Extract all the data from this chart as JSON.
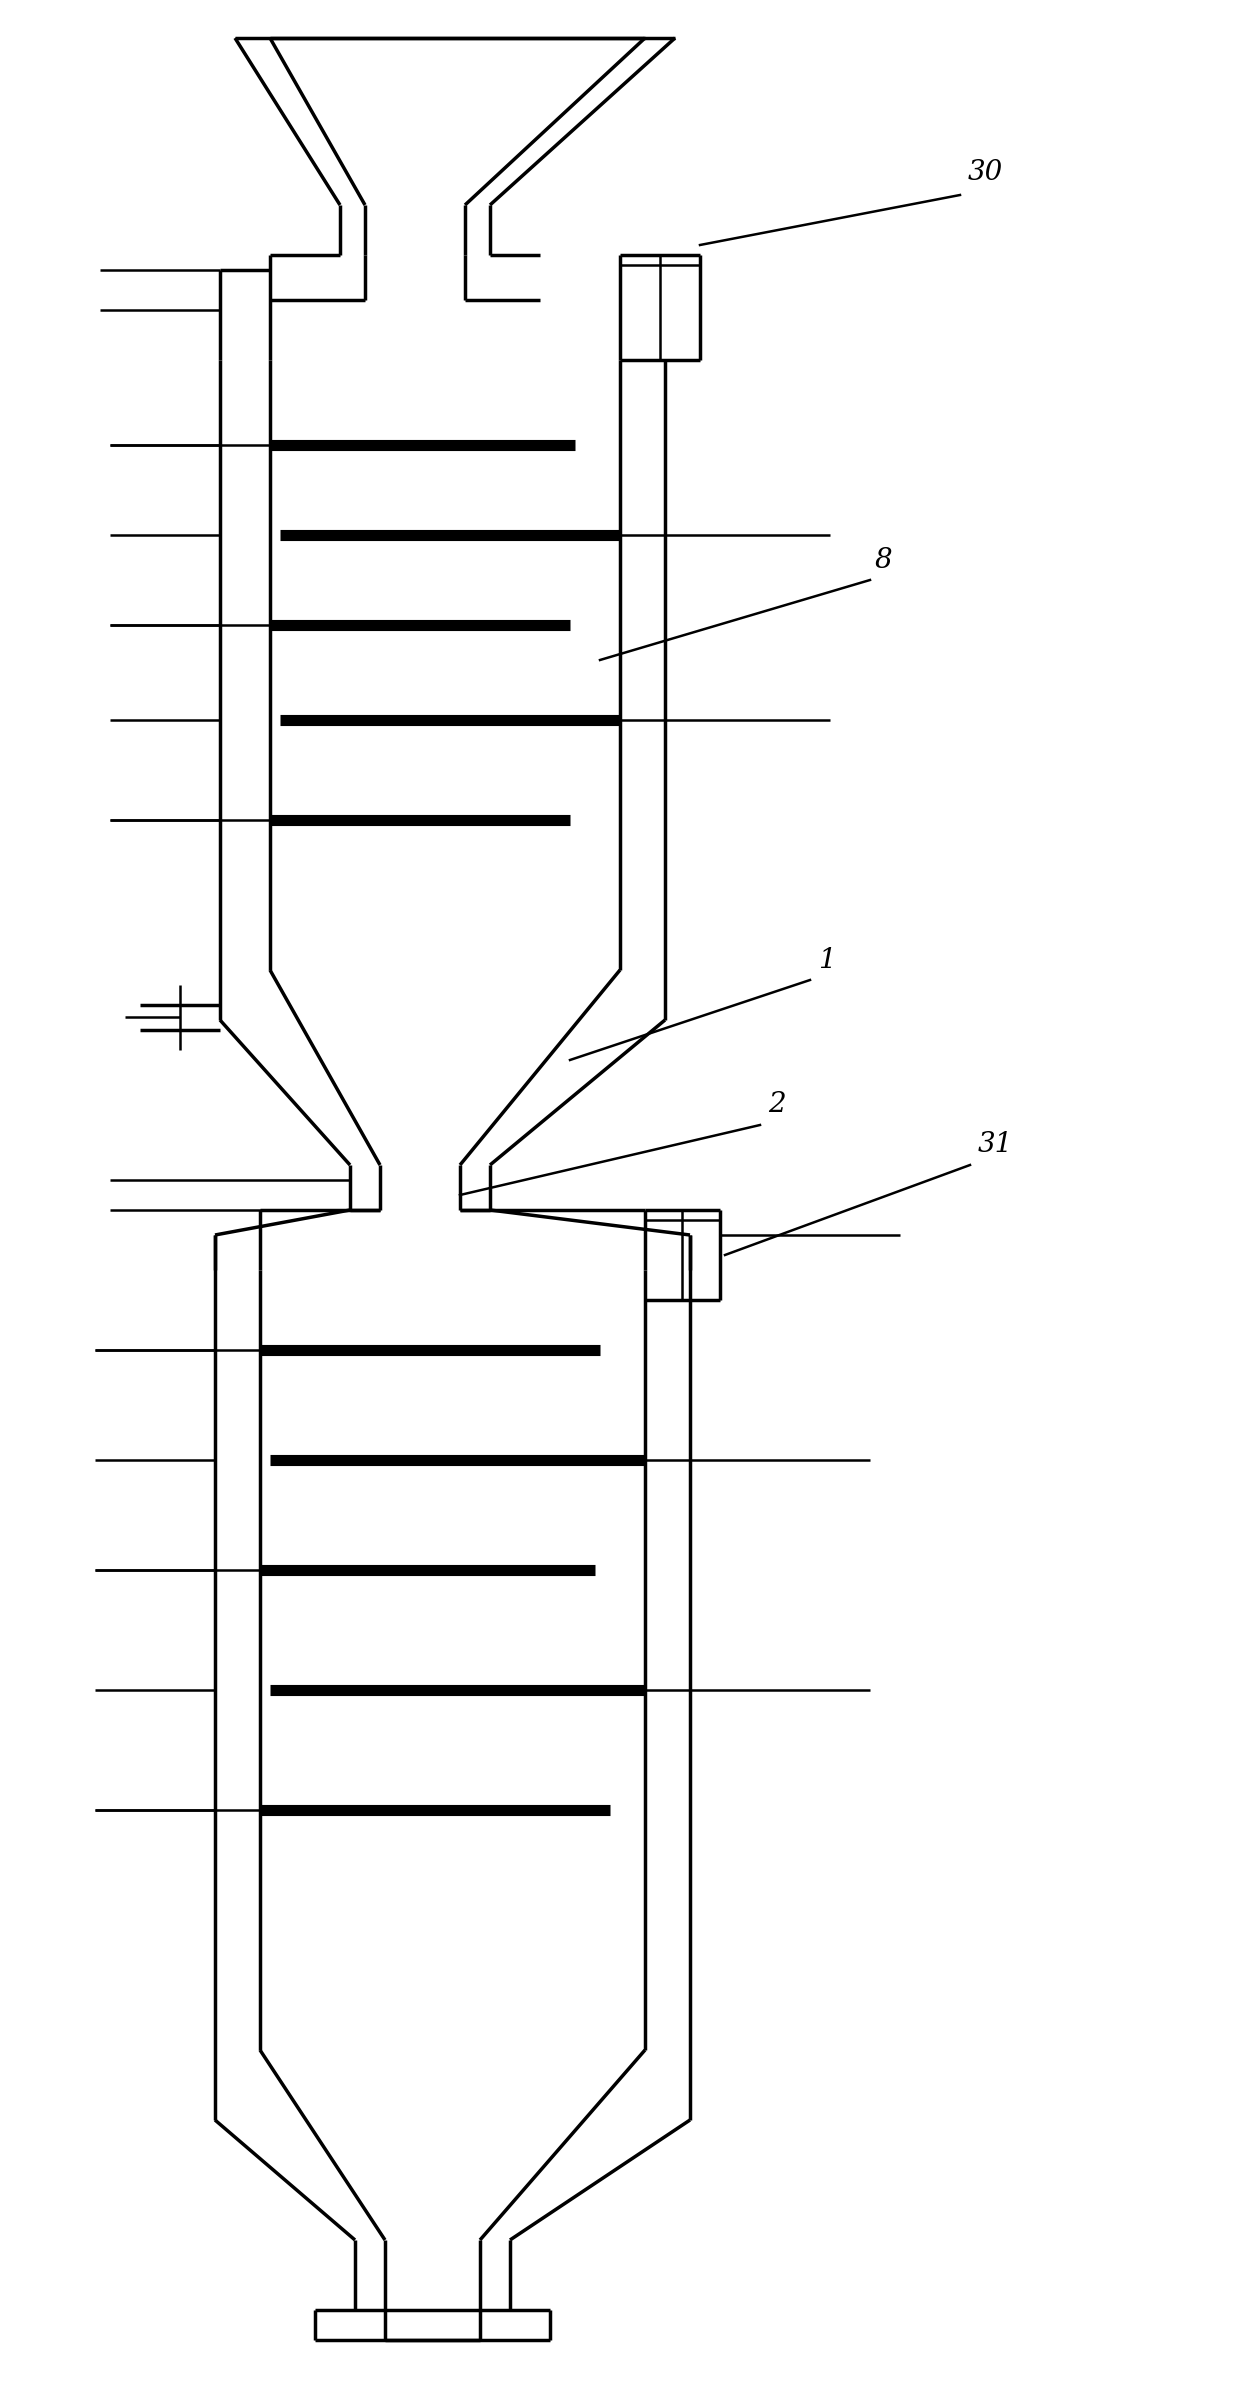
{
  "bg_color": "#ffffff",
  "line_color": "#000000",
  "fig_width": 12.46,
  "fig_height": 23.98,
  "label_30": "30",
  "label_8": "8",
  "label_1": "1",
  "label_2": "2",
  "label_31": "31",
  "thin_lw": 1.8,
  "wall_lw": 2.5,
  "thick_bar_lw": 8
}
